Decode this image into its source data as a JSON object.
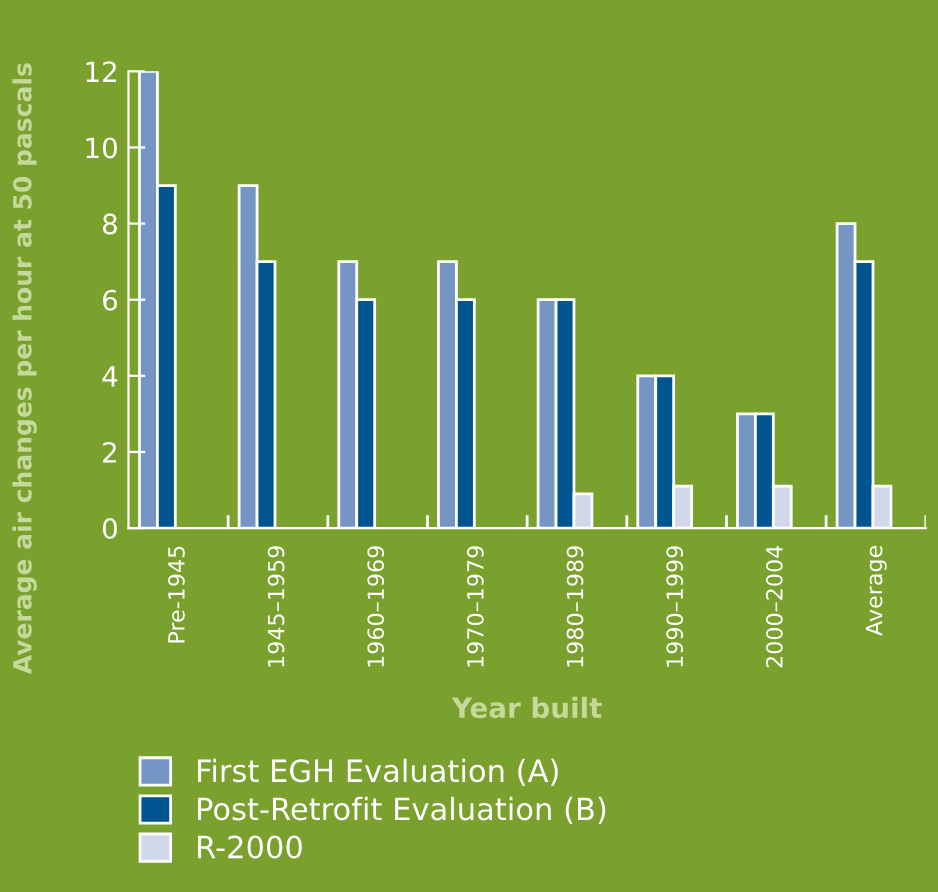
{
  "chart_data": {
    "type": "bar",
    "xlabel": "Year built",
    "ylabel": "Average air changes per hour at 50 pascals",
    "categories": [
      "Pre-1945",
      "1945–1959",
      "1960–1969",
      "1970–1979",
      "1980–1989",
      "1990–1999",
      "2000–2004",
      "Average"
    ],
    "series": [
      {
        "name": "First EGH Evaluation (A)",
        "color": "#7596c4",
        "values": [
          12,
          9,
          7,
          7,
          6,
          4,
          3,
          8
        ]
      },
      {
        "name": "Post-Retrofit Evaluation (B)",
        "color": "#00548f",
        "values": [
          9,
          7,
          6,
          6,
          6,
          4,
          3,
          7
        ]
      },
      {
        "name": "R-2000",
        "color": "#d0d8ea",
        "values": [
          null,
          null,
          null,
          null,
          0.9,
          1.1,
          1.1,
          1.1
        ]
      }
    ],
    "ylim": [
      0,
      12
    ],
    "yticks": [
      0,
      2,
      4,
      6,
      8,
      10,
      12
    ],
    "grid": false,
    "legend": "bottom left"
  }
}
